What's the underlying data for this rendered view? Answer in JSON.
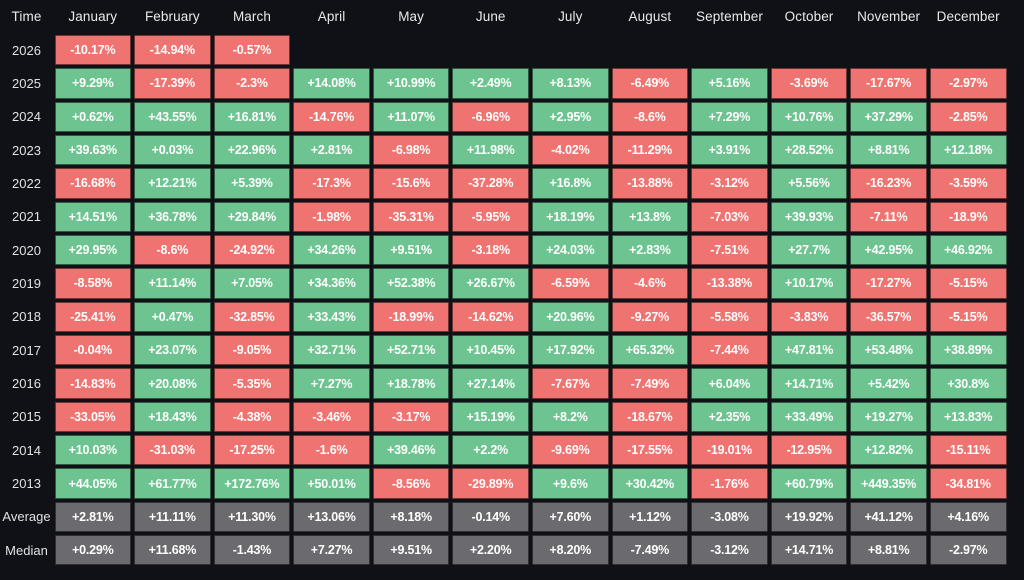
{
  "colors": {
    "background": "#101117",
    "positive": "#6ec491",
    "negative": "#ef7370",
    "summary": "#6a6a6f",
    "header_text": "#e8e9eb",
    "label_text": "#e0e1e4",
    "cell_text": "#ffffff"
  },
  "chart_data": {
    "type": "heatmap",
    "corner_label": "Time",
    "columns": [
      "January",
      "February",
      "March",
      "April",
      "May",
      "June",
      "July",
      "August",
      "September",
      "October",
      "November",
      "December"
    ],
    "rows": [
      {
        "label": "2026",
        "kind": "year",
        "values": [
          "-10.17%",
          "-14.94%",
          "-0.57%",
          "",
          "",
          "",
          "",
          "",
          "",
          "",
          "",
          ""
        ]
      },
      {
        "label": "2025",
        "kind": "year",
        "values": [
          "+9.29%",
          "-17.39%",
          "-2.3%",
          "+14.08%",
          "+10.99%",
          "+2.49%",
          "+8.13%",
          "-6.49%",
          "+5.16%",
          "-3.69%",
          "-17.67%",
          "-2.97%"
        ]
      },
      {
        "label": "2024",
        "kind": "year",
        "values": [
          "+0.62%",
          "+43.55%",
          "+16.81%",
          "-14.76%",
          "+11.07%",
          "-6.96%",
          "+2.95%",
          "-8.6%",
          "+7.29%",
          "+10.76%",
          "+37.29%",
          "-2.85%"
        ]
      },
      {
        "label": "2023",
        "kind": "year",
        "values": [
          "+39.63%",
          "+0.03%",
          "+22.96%",
          "+2.81%",
          "-6.98%",
          "+11.98%",
          "-4.02%",
          "-11.29%",
          "+3.91%",
          "+28.52%",
          "+8.81%",
          "+12.18%"
        ]
      },
      {
        "label": "2022",
        "kind": "year",
        "values": [
          "-16.68%",
          "+12.21%",
          "+5.39%",
          "-17.3%",
          "-15.6%",
          "-37.28%",
          "+16.8%",
          "-13.88%",
          "-3.12%",
          "+5.56%",
          "-16.23%",
          "-3.59%"
        ]
      },
      {
        "label": "2021",
        "kind": "year",
        "values": [
          "+14.51%",
          "+36.78%",
          "+29.84%",
          "-1.98%",
          "-35.31%",
          "-5.95%",
          "+18.19%",
          "+13.8%",
          "-7.03%",
          "+39.93%",
          "-7.11%",
          "-18.9%"
        ]
      },
      {
        "label": "2020",
        "kind": "year",
        "values": [
          "+29.95%",
          "-8.6%",
          "-24.92%",
          "+34.26%",
          "+9.51%",
          "-3.18%",
          "+24.03%",
          "+2.83%",
          "-7.51%",
          "+27.7%",
          "+42.95%",
          "+46.92%"
        ]
      },
      {
        "label": "2019",
        "kind": "year",
        "values": [
          "-8.58%",
          "+11.14%",
          "+7.05%",
          "+34.36%",
          "+52.38%",
          "+26.67%",
          "-6.59%",
          "-4.6%",
          "-13.38%",
          "+10.17%",
          "-17.27%",
          "-5.15%"
        ]
      },
      {
        "label": "2018",
        "kind": "year",
        "values": [
          "-25.41%",
          "+0.47%",
          "-32.85%",
          "+33.43%",
          "-18.99%",
          "-14.62%",
          "+20.96%",
          "-9.27%",
          "-5.58%",
          "-3.83%",
          "-36.57%",
          "-5.15%"
        ]
      },
      {
        "label": "2017",
        "kind": "year",
        "values": [
          "-0.04%",
          "+23.07%",
          "-9.05%",
          "+32.71%",
          "+52.71%",
          "+10.45%",
          "+17.92%",
          "+65.32%",
          "-7.44%",
          "+47.81%",
          "+53.48%",
          "+38.89%"
        ]
      },
      {
        "label": "2016",
        "kind": "year",
        "values": [
          "-14.83%",
          "+20.08%",
          "-5.35%",
          "+7.27%",
          "+18.78%",
          "+27.14%",
          "-7.67%",
          "-7.49%",
          "+6.04%",
          "+14.71%",
          "+5.42%",
          "+30.8%"
        ]
      },
      {
        "label": "2015",
        "kind": "year",
        "values": [
          "-33.05%",
          "+18.43%",
          "-4.38%",
          "-3.46%",
          "-3.17%",
          "+15.19%",
          "+8.2%",
          "-18.67%",
          "+2.35%",
          "+33.49%",
          "+19.27%",
          "+13.83%"
        ]
      },
      {
        "label": "2014",
        "kind": "year",
        "values": [
          "+10.03%",
          "-31.03%",
          "-17.25%",
          "-1.6%",
          "+39.46%",
          "+2.2%",
          "-9.69%",
          "-17.55%",
          "-19.01%",
          "-12.95%",
          "+12.82%",
          "-15.11%"
        ]
      },
      {
        "label": "2013",
        "kind": "year",
        "values": [
          "+44.05%",
          "+61.77%",
          "+172.76%",
          "+50.01%",
          "-8.56%",
          "-29.89%",
          "+9.6%",
          "+30.42%",
          "-1.76%",
          "+60.79%",
          "+449.35%",
          "-34.81%"
        ]
      },
      {
        "label": "Average",
        "kind": "summary",
        "values": [
          "+2.81%",
          "+11.11%",
          "+11.30%",
          "+13.06%",
          "+8.18%",
          "-0.14%",
          "+7.60%",
          "+1.12%",
          "-3.08%",
          "+19.92%",
          "+41.12%",
          "+4.16%"
        ]
      },
      {
        "label": "Median",
        "kind": "summary",
        "values": [
          "+0.29%",
          "+11.68%",
          "-1.43%",
          "+7.27%",
          "+9.51%",
          "+2.20%",
          "+8.20%",
          "-7.49%",
          "-3.12%",
          "+14.71%",
          "+8.81%",
          "-2.97%"
        ]
      }
    ]
  }
}
